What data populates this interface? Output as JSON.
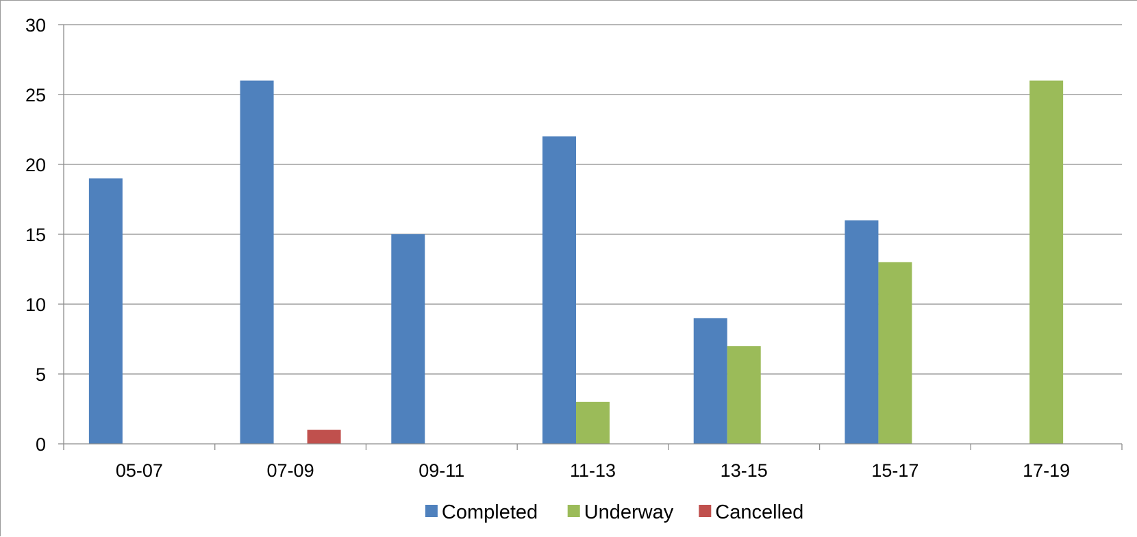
{
  "chart_data": {
    "type": "bar",
    "title": "",
    "xlabel": "",
    "ylabel": "",
    "categories": [
      "05-07",
      "07-09",
      "09-11",
      "11-13",
      "13-15",
      "15-17",
      "17-19"
    ],
    "series": [
      {
        "name": "Completed",
        "color": "#4f81bd",
        "values": [
          19,
          26,
          15,
          22,
          9,
          16,
          0
        ]
      },
      {
        "name": "Underway",
        "color": "#9bbb59",
        "values": [
          0,
          0,
          0,
          3,
          7,
          13,
          26
        ]
      },
      {
        "name": "Cancelled",
        "color": "#c0504d",
        "values": [
          0,
          1,
          0,
          0,
          0,
          0,
          0
        ]
      }
    ],
    "ylim": [
      0,
      30
    ],
    "yticks": [
      0,
      5,
      10,
      15,
      20,
      25,
      30
    ],
    "grid": true,
    "legend_position": "bottom"
  }
}
